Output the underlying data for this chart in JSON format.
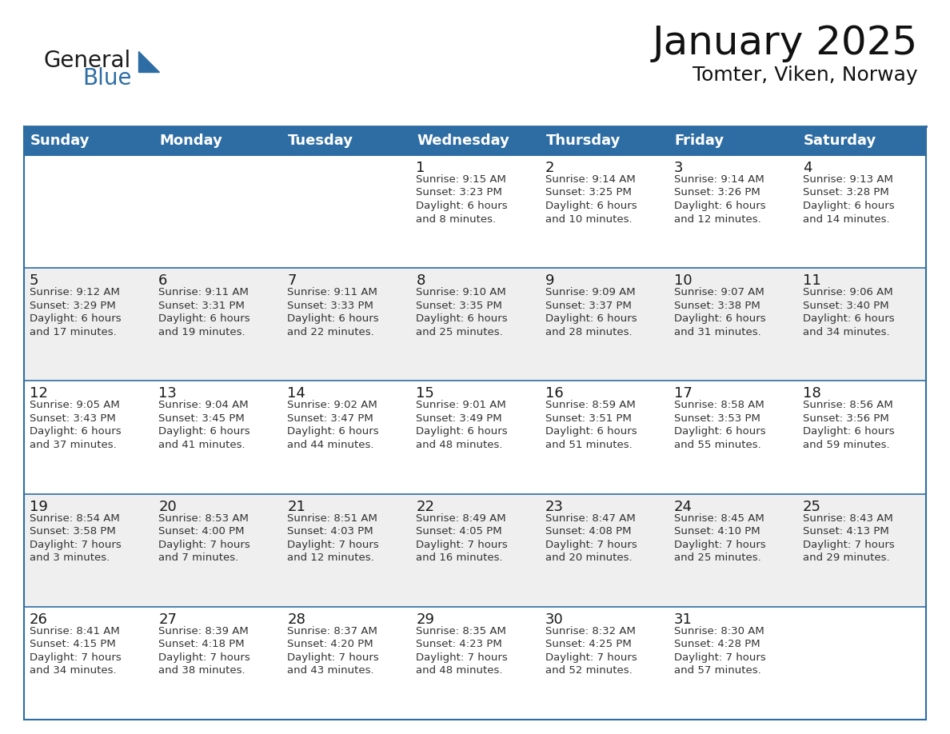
{
  "title": "January 2025",
  "subtitle": "Tomter, Viken, Norway",
  "header_bg": "#2E6DA4",
  "header_text_color": "#FFFFFF",
  "header_days": [
    "Sunday",
    "Monday",
    "Tuesday",
    "Wednesday",
    "Thursday",
    "Friday",
    "Saturday"
  ],
  "row_bg_colors": [
    "#FFFFFF",
    "#EFEFEF",
    "#FFFFFF",
    "#EFEFEF",
    "#FFFFFF"
  ],
  "border_color": "#2E6DA4",
  "divider_color": "#2E6DA4",
  "day_num_color": "#1a1a1a",
  "info_color": "#333333",
  "week_rows": [
    [
      {
        "day": "",
        "info": ""
      },
      {
        "day": "",
        "info": ""
      },
      {
        "day": "",
        "info": ""
      },
      {
        "day": "1",
        "info": "Sunrise: 9:15 AM\nSunset: 3:23 PM\nDaylight: 6 hours\nand 8 minutes."
      },
      {
        "day": "2",
        "info": "Sunrise: 9:14 AM\nSunset: 3:25 PM\nDaylight: 6 hours\nand 10 minutes."
      },
      {
        "day": "3",
        "info": "Sunrise: 9:14 AM\nSunset: 3:26 PM\nDaylight: 6 hours\nand 12 minutes."
      },
      {
        "day": "4",
        "info": "Sunrise: 9:13 AM\nSunset: 3:28 PM\nDaylight: 6 hours\nand 14 minutes."
      }
    ],
    [
      {
        "day": "5",
        "info": "Sunrise: 9:12 AM\nSunset: 3:29 PM\nDaylight: 6 hours\nand 17 minutes."
      },
      {
        "day": "6",
        "info": "Sunrise: 9:11 AM\nSunset: 3:31 PM\nDaylight: 6 hours\nand 19 minutes."
      },
      {
        "day": "7",
        "info": "Sunrise: 9:11 AM\nSunset: 3:33 PM\nDaylight: 6 hours\nand 22 minutes."
      },
      {
        "day": "8",
        "info": "Sunrise: 9:10 AM\nSunset: 3:35 PM\nDaylight: 6 hours\nand 25 minutes."
      },
      {
        "day": "9",
        "info": "Sunrise: 9:09 AM\nSunset: 3:37 PM\nDaylight: 6 hours\nand 28 minutes."
      },
      {
        "day": "10",
        "info": "Sunrise: 9:07 AM\nSunset: 3:38 PM\nDaylight: 6 hours\nand 31 minutes."
      },
      {
        "day": "11",
        "info": "Sunrise: 9:06 AM\nSunset: 3:40 PM\nDaylight: 6 hours\nand 34 minutes."
      }
    ],
    [
      {
        "day": "12",
        "info": "Sunrise: 9:05 AM\nSunset: 3:43 PM\nDaylight: 6 hours\nand 37 minutes."
      },
      {
        "day": "13",
        "info": "Sunrise: 9:04 AM\nSunset: 3:45 PM\nDaylight: 6 hours\nand 41 minutes."
      },
      {
        "day": "14",
        "info": "Sunrise: 9:02 AM\nSunset: 3:47 PM\nDaylight: 6 hours\nand 44 minutes."
      },
      {
        "day": "15",
        "info": "Sunrise: 9:01 AM\nSunset: 3:49 PM\nDaylight: 6 hours\nand 48 minutes."
      },
      {
        "day": "16",
        "info": "Sunrise: 8:59 AM\nSunset: 3:51 PM\nDaylight: 6 hours\nand 51 minutes."
      },
      {
        "day": "17",
        "info": "Sunrise: 8:58 AM\nSunset: 3:53 PM\nDaylight: 6 hours\nand 55 minutes."
      },
      {
        "day": "18",
        "info": "Sunrise: 8:56 AM\nSunset: 3:56 PM\nDaylight: 6 hours\nand 59 minutes."
      }
    ],
    [
      {
        "day": "19",
        "info": "Sunrise: 8:54 AM\nSunset: 3:58 PM\nDaylight: 7 hours\nand 3 minutes."
      },
      {
        "day": "20",
        "info": "Sunrise: 8:53 AM\nSunset: 4:00 PM\nDaylight: 7 hours\nand 7 minutes."
      },
      {
        "day": "21",
        "info": "Sunrise: 8:51 AM\nSunset: 4:03 PM\nDaylight: 7 hours\nand 12 minutes."
      },
      {
        "day": "22",
        "info": "Sunrise: 8:49 AM\nSunset: 4:05 PM\nDaylight: 7 hours\nand 16 minutes."
      },
      {
        "day": "23",
        "info": "Sunrise: 8:47 AM\nSunset: 4:08 PM\nDaylight: 7 hours\nand 20 minutes."
      },
      {
        "day": "24",
        "info": "Sunrise: 8:45 AM\nSunset: 4:10 PM\nDaylight: 7 hours\nand 25 minutes."
      },
      {
        "day": "25",
        "info": "Sunrise: 8:43 AM\nSunset: 4:13 PM\nDaylight: 7 hours\nand 29 minutes."
      }
    ],
    [
      {
        "day": "26",
        "info": "Sunrise: 8:41 AM\nSunset: 4:15 PM\nDaylight: 7 hours\nand 34 minutes."
      },
      {
        "day": "27",
        "info": "Sunrise: 8:39 AM\nSunset: 4:18 PM\nDaylight: 7 hours\nand 38 minutes."
      },
      {
        "day": "28",
        "info": "Sunrise: 8:37 AM\nSunset: 4:20 PM\nDaylight: 7 hours\nand 43 minutes."
      },
      {
        "day": "29",
        "info": "Sunrise: 8:35 AM\nSunset: 4:23 PM\nDaylight: 7 hours\nand 48 minutes."
      },
      {
        "day": "30",
        "info": "Sunrise: 8:32 AM\nSunset: 4:25 PM\nDaylight: 7 hours\nand 52 minutes."
      },
      {
        "day": "31",
        "info": "Sunrise: 8:30 AM\nSunset: 4:28 PM\nDaylight: 7 hours\nand 57 minutes."
      },
      {
        "day": "",
        "info": ""
      }
    ]
  ],
  "logo_text1": "General",
  "logo_text2": "Blue",
  "logo_triangle_color": "#2E6DA4",
  "title_fontsize": 36,
  "subtitle_fontsize": 18,
  "header_fontsize": 13,
  "day_num_fontsize": 13,
  "info_fontsize": 9.5
}
